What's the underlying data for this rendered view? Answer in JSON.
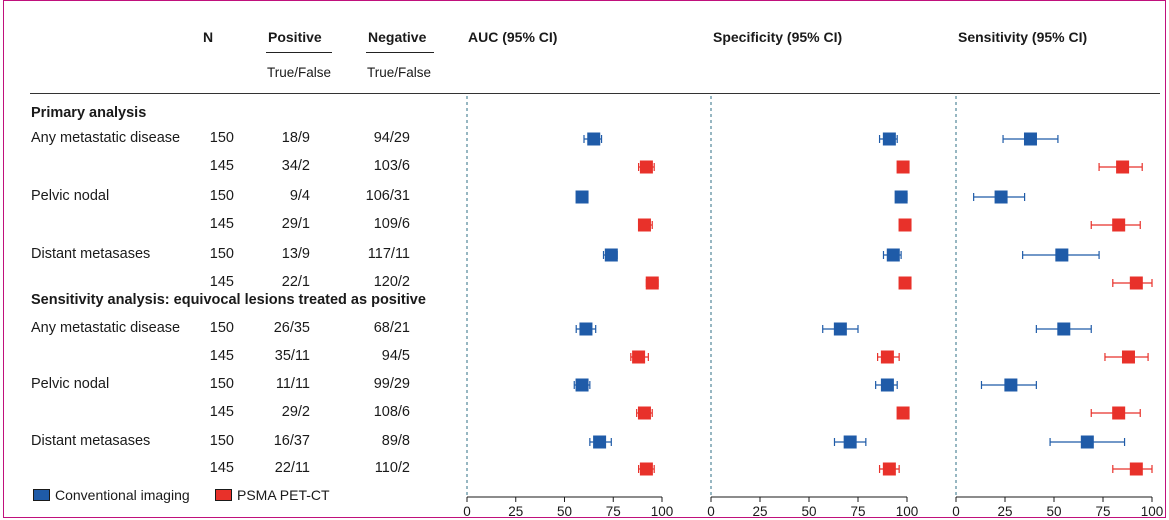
{
  "header": {
    "n": "N",
    "positive": "Positive",
    "negative": "Negative",
    "positive_sub": "True/False",
    "negative_sub": "True/False",
    "panels": [
      "AUC (95% CI)",
      "Specificity (95% CI)",
      "Sensitivity (95% CI)"
    ]
  },
  "sections": [
    "Primary analysis",
    "Sensitivity analysis: equivocal lesions treated as positive"
  ],
  "rows": [
    {
      "label": "Any metastatic disease",
      "n": "150",
      "pos": "18/9",
      "neg": "94/29"
    },
    {
      "label": "",
      "n": "145",
      "pos": "34/2",
      "neg": "103/6"
    },
    {
      "label": "Pelvic nodal",
      "n": "150",
      "pos": "9/4",
      "neg": "106/31"
    },
    {
      "label": "",
      "n": "145",
      "pos": "29/1",
      "neg": "109/6"
    },
    {
      "label": "Distant metasases",
      "n": "150",
      "pos": "13/9",
      "neg": "117/11"
    },
    {
      "label": "",
      "n": "145",
      "pos": "22/1",
      "neg": "120/2"
    },
    {
      "label": "Any metastatic disease",
      "n": "150",
      "pos": "26/35",
      "neg": "68/21"
    },
    {
      "label": "",
      "n": "145",
      "pos": "35/11",
      "neg": "94/5"
    },
    {
      "label": "Pelvic nodal",
      "n": "150",
      "pos": "11/11",
      "neg": "99/29"
    },
    {
      "label": "",
      "n": "145",
      "pos": "29/2",
      "neg": "108/6"
    },
    {
      "label": "Distant metasases",
      "n": "150",
      "pos": "16/37",
      "neg": "89/8"
    },
    {
      "label": "",
      "n": "145",
      "pos": "22/11",
      "neg": "110/2"
    }
  ],
  "legend": [
    {
      "name": "Conventional imaging",
      "color": "#1f5ba8"
    },
    {
      "name": "PSMA PET-CT",
      "color": "#e8312a"
    }
  ],
  "colors": {
    "conventional": "#1f5ba8",
    "psma": "#e8312a",
    "frame": "#c0117c",
    "ref_line": "#2f6f86"
  },
  "chart_data": [
    {
      "type": "scatter",
      "title": "AUC (95% CI)",
      "xlim": [
        0,
        100
      ],
      "ticks": [
        0,
        25,
        50,
        75,
        100
      ],
      "reference_line": 0,
      "series": [
        {
          "name": "Conventional imaging",
          "values": [
            65,
            null,
            59,
            null,
            74,
            null,
            61,
            null,
            59,
            null,
            68,
            null
          ],
          "ci": [
            [
              60,
              69
            ],
            null,
            [
              57,
              62
            ],
            null,
            [
              70,
              77
            ],
            null,
            [
              56,
              66
            ],
            null,
            [
              55,
              63
            ],
            null,
            [
              63,
              74
            ],
            null
          ]
        },
        {
          "name": "PSMA PET-CT",
          "values": [
            null,
            92,
            null,
            91,
            null,
            95,
            null,
            88,
            null,
            91,
            null,
            92
          ],
          "ci": [
            null,
            [
              88,
              96
            ],
            null,
            [
              88,
              95
            ],
            null,
            [
              92,
              98
            ],
            null,
            [
              84,
              93
            ],
            null,
            [
              87,
              95
            ],
            null,
            [
              88,
              96
            ]
          ]
        }
      ]
    },
    {
      "type": "scatter",
      "title": "Specificity (95% CI)",
      "xlim": [
        0,
        100
      ],
      "ticks": [
        0,
        25,
        50,
        75,
        100
      ],
      "reference_line": 0,
      "series": [
        {
          "name": "Conventional imaging",
          "values": [
            91,
            null,
            97,
            null,
            93,
            null,
            66,
            null,
            90,
            null,
            71,
            null
          ],
          "ci": [
            [
              86,
              95
            ],
            null,
            [
              95,
              100
            ],
            null,
            [
              88,
              97
            ],
            null,
            [
              57,
              75
            ],
            null,
            [
              84,
              95
            ],
            null,
            [
              63,
              79
            ],
            null
          ]
        },
        {
          "name": "PSMA PET-CT",
          "values": [
            null,
            98,
            null,
            99,
            null,
            99,
            null,
            90,
            null,
            98,
            null,
            91
          ],
          "ci": [
            null,
            [
              96,
              100
            ],
            null,
            [
              97,
              100
            ],
            null,
            [
              97,
              100
            ],
            null,
            [
              85,
              96
            ],
            null,
            [
              96,
              100
            ],
            null,
            [
              86,
              96
            ]
          ]
        }
      ]
    },
    {
      "type": "scatter",
      "title": "Sensitivity (95% CI)",
      "xlim": [
        0,
        100
      ],
      "ticks": [
        0,
        25,
        50,
        75,
        100
      ],
      "reference_line": 0,
      "series": [
        {
          "name": "Conventional imaging",
          "values": [
            38,
            null,
            23,
            null,
            54,
            null,
            55,
            null,
            28,
            null,
            67,
            null
          ],
          "ci": [
            [
              24,
              52
            ],
            null,
            [
              9,
              35
            ],
            null,
            [
              34,
              73
            ],
            null,
            [
              41,
              69
            ],
            null,
            [
              13,
              41
            ],
            null,
            [
              48,
              86
            ],
            null
          ]
        },
        {
          "name": "PSMA PET-CT",
          "values": [
            null,
            85,
            null,
            83,
            null,
            92,
            null,
            88,
            null,
            83,
            null,
            92
          ],
          "ci": [
            null,
            [
              73,
              95
            ],
            null,
            [
              69,
              94
            ],
            null,
            [
              80,
              100
            ],
            null,
            [
              76,
              98
            ],
            null,
            [
              69,
              94
            ],
            null,
            [
              80,
              100
            ]
          ]
        }
      ]
    }
  ]
}
